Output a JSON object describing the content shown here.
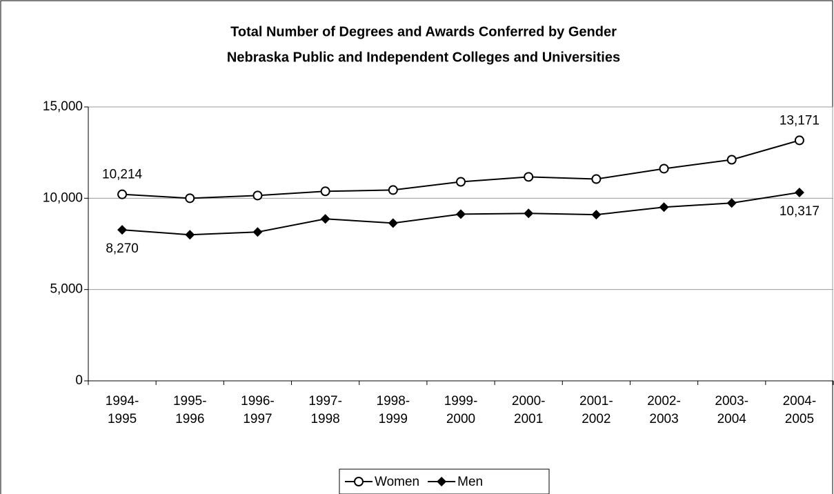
{
  "chart_data": {
    "type": "line",
    "title": "Total Number of Degrees and Awards Conferred by Gender",
    "subtitle": "Nebraska Public and Independent Colleges and Universities",
    "categories": [
      "1994-1995",
      "1995-1996",
      "1996-1997",
      "1997-1998",
      "1998-1999",
      "1999-2000",
      "2000-2001",
      "2001-2002",
      "2002-2003",
      "2003-2004",
      "2004-2005"
    ],
    "series": [
      {
        "name": "Women",
        "color": "#000000",
        "marker": "circle",
        "values": [
          10214,
          10000,
          10150,
          10380,
          10450,
          10900,
          11170,
          11050,
          11620,
          12110,
          13171
        ],
        "value_labels": [
          "10,214",
          null,
          null,
          null,
          null,
          null,
          null,
          null,
          null,
          null,
          "13,171"
        ]
      },
      {
        "name": "Men",
        "color": "#000000",
        "marker": "diamond",
        "values": [
          8270,
          8000,
          8150,
          8870,
          8640,
          9130,
          9170,
          9100,
          9510,
          9740,
          10317
        ],
        "value_labels": [
          "8,270",
          null,
          null,
          null,
          null,
          null,
          null,
          null,
          null,
          null,
          "10,317"
        ]
      }
    ],
    "ylim": [
      0,
      15000
    ],
    "yticks": [
      0,
      {
        "value": 5000,
        "label": "5,000"
      },
      {
        "value": 10000,
        "label": "10,000"
      },
      {
        "value": 15000,
        "label": "15,000"
      }
    ],
    "grid": true,
    "legend": "bottom"
  }
}
